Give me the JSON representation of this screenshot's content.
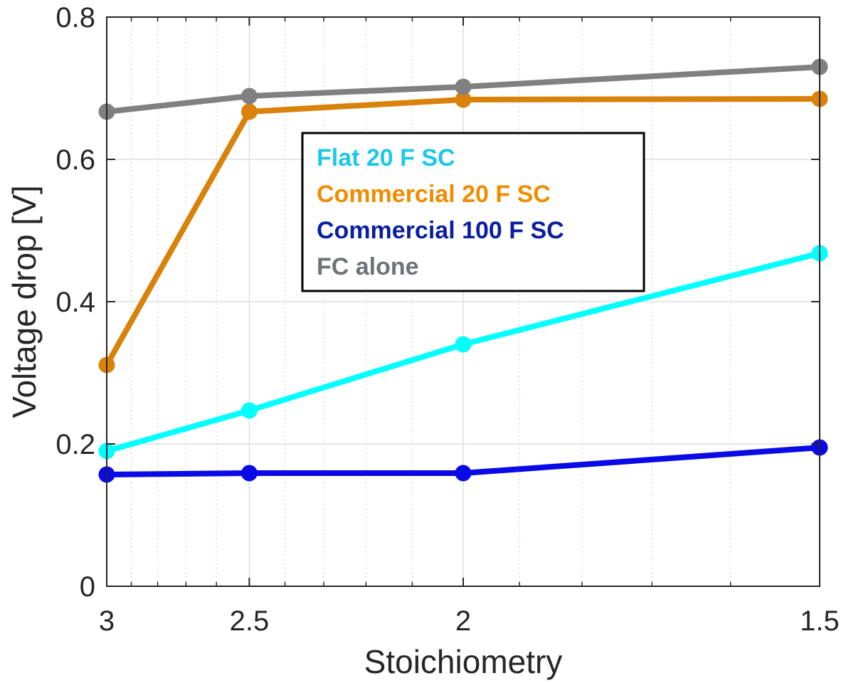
{
  "chart_data": {
    "type": "line",
    "title": "",
    "xlabel": "Stoichiometry",
    "ylabel": "Voltage drop [V]",
    "x": [
      3,
      2.5,
      2,
      1.5
    ],
    "x_tick_labels": [
      "3",
      "2.5",
      "2",
      "1.5"
    ],
    "xlim": [
      3,
      1.5
    ],
    "x_scale": "reciprocal (reversed, log-like spacing)",
    "ylim": [
      0,
      0.8
    ],
    "y_ticks": [
      0,
      0.2,
      0.4,
      0.6,
      0.8
    ],
    "y_tick_labels": [
      "0",
      "0.2",
      "0.4",
      "0.6",
      "0.8"
    ],
    "grid": true,
    "minor_grid": true,
    "legend_position": "upper-center",
    "series": [
      {
        "name": "Flat 20 F SC",
        "color": "#00FFFF",
        "text_color": "#1EC8E6",
        "values": [
          0.19,
          0.247,
          0.34,
          0.468
        ]
      },
      {
        "name": "Commercial 20 F SC",
        "color": "#D9820A",
        "text_color": "#F08C00",
        "values": [
          0.311,
          0.667,
          0.684,
          0.685
        ]
      },
      {
        "name": "Commercial 100 F SC",
        "color": "#0A0AE6",
        "text_color": "#0A1EA0",
        "values": [
          0.157,
          0.159,
          0.159,
          0.195
        ]
      },
      {
        "name": "FC alone",
        "color": "#808080",
        "text_color": "#6E7378",
        "values": [
          0.667,
          0.689,
          0.702,
          0.73
        ]
      }
    ]
  }
}
